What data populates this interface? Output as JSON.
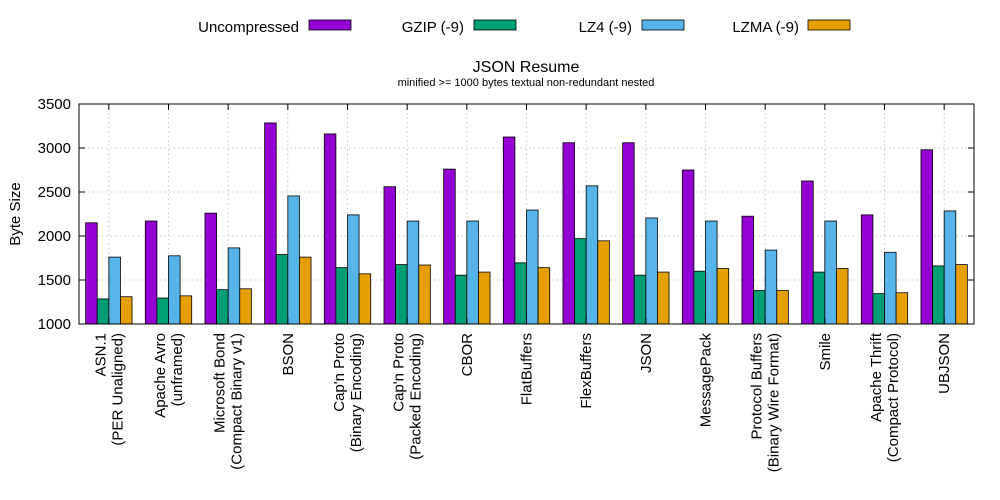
{
  "chart_data": {
    "type": "bar",
    "title": "JSON Resume",
    "subtitle": "minified >= 1000 bytes textual non-redundant nested",
    "xlabel": "",
    "ylabel": "Byte Size",
    "ylim": [
      1000,
      3500
    ],
    "yticks": [
      1000,
      1500,
      2000,
      2500,
      3000,
      3500
    ],
    "grid": true,
    "legend_position": "top",
    "categories": [
      [
        "ASN.1",
        "(PER Unaligned)"
      ],
      [
        "Apache Avro",
        "(unframed)"
      ],
      [
        "Microsoft Bond",
        "(Compact Binary v1)"
      ],
      [
        "BSON"
      ],
      [
        "Cap'n Proto",
        "(Binary Encoding)"
      ],
      [
        "Cap'n Proto",
        "(Packed Encoding)"
      ],
      [
        "CBOR"
      ],
      [
        "FlatBuffers"
      ],
      [
        "FlexBuffers"
      ],
      [
        "JSON"
      ],
      [
        "MessagePack"
      ],
      [
        "Protocol Buffers",
        "(Binary Wire Format)"
      ],
      [
        "Smile"
      ],
      [
        "Apache Thrift",
        "(Compact Protocol)"
      ],
      [
        "UBJSON"
      ]
    ],
    "series": [
      {
        "name": "Uncompressed",
        "color": "#9400d3",
        "values": [
          2150,
          2170,
          2260,
          3285,
          3160,
          2560,
          2760,
          3125,
          3060,
          3060,
          2750,
          2225,
          2625,
          2240,
          2980
        ]
      },
      {
        "name": "GZIP (-9)",
        "color": "#009e73",
        "values": [
          1285,
          1295,
          1390,
          1790,
          1640,
          1675,
          1555,
          1695,
          1970,
          1555,
          1600,
          1380,
          1590,
          1345,
          1660
        ]
      },
      {
        "name": "LZ4 (-9)",
        "color": "#56b4e9",
        "values": [
          1760,
          1775,
          1865,
          2455,
          2240,
          2170,
          2170,
          2295,
          2570,
          2205,
          2170,
          1840,
          2170,
          1815,
          2285
        ]
      },
      {
        "name": "LZMA (-9)",
        "color": "#e69f00",
        "values": [
          1310,
          1320,
          1400,
          1760,
          1570,
          1670,
          1590,
          1640,
          1945,
          1590,
          1630,
          1380,
          1630,
          1355,
          1675
        ]
      }
    ]
  }
}
